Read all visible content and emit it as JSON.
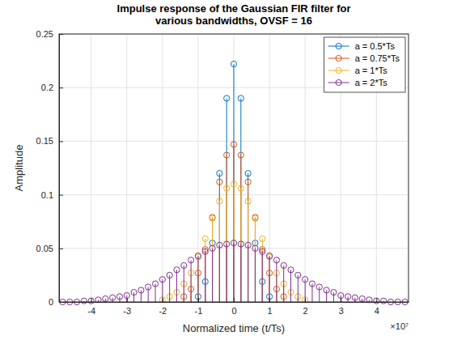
{
  "chart_data": {
    "type": "stem",
    "title": [
      "Impulse response of the Gaussian FIR filter for",
      "various bandwidths, OVSF = 16"
    ],
    "x_label": "Normalized time (t/Ts)",
    "y_label": "Amplitude",
    "annotations": [
      "×10⁷"
    ],
    "xlim": [
      -4.9,
      4.9
    ],
    "xticks": [
      -4,
      -3,
      -2,
      -1,
      0,
      1,
      2,
      3,
      4
    ],
    "ylim": [
      0,
      0.25
    ],
    "yticks": [
      0,
      0.05,
      0.1,
      0.15,
      0.2,
      0.25
    ],
    "grid": true,
    "legend": "northeast",
    "series": [
      {
        "name": "a = 0.5*Ts",
        "color": "#0072bd",
        "marker": "circle",
        "x": [
          -1.0,
          -0.8,
          -0.6,
          -0.4,
          -0.2,
          0,
          0.2,
          0.4,
          0.6,
          0.8,
          1.0
        ],
        "values": [
          0.005,
          0.019,
          0.055,
          0.12,
          0.19,
          0.222,
          0.19,
          0.12,
          0.055,
          0.019,
          0.005
        ]
      },
      {
        "name": "a = 0.75*Ts",
        "color": "#d95319",
        "marker": "circle",
        "x": [
          -1.4,
          -1.2,
          -1.0,
          -0.8,
          -0.6,
          -0.4,
          -0.2,
          0,
          0.2,
          0.4,
          0.6,
          0.8,
          1.0,
          1.2,
          1.4
        ],
        "values": [
          0.005,
          0.012,
          0.027,
          0.049,
          0.079,
          0.112,
          0.137,
          0.147,
          0.137,
          0.112,
          0.079,
          0.049,
          0.027,
          0.012,
          0.005
        ]
      },
      {
        "name": "a = 1*Ts",
        "color": "#edb120",
        "marker": "circle",
        "x": [
          -2.0,
          -1.8,
          -1.6,
          -1.4,
          -1.2,
          -1.0,
          -0.8,
          -0.6,
          -0.4,
          -0.2,
          0,
          0.2,
          0.4,
          0.6,
          0.8,
          1.0,
          1.2,
          1.4,
          1.6,
          1.8,
          2.0
        ],
        "values": [
          0.002,
          0.005,
          0.009,
          0.017,
          0.027,
          0.042,
          0.059,
          0.078,
          0.094,
          0.106,
          0.11,
          0.106,
          0.094,
          0.078,
          0.059,
          0.042,
          0.027,
          0.017,
          0.009,
          0.005,
          0.002
        ]
      },
      {
        "name": "a = 2*Ts",
        "color": "#7e2f8e",
        "marker": "circle",
        "x": [
          -4.8,
          -4.6,
          -4.4,
          -4.2,
          -4.0,
          -3.8,
          -3.6,
          -3.4,
          -3.2,
          -3.0,
          -2.8,
          -2.6,
          -2.4,
          -2.2,
          -2.0,
          -1.8,
          -1.6,
          -1.4,
          -1.2,
          -1.0,
          -0.8,
          -0.6,
          -0.4,
          -0.2,
          0,
          0.2,
          0.4,
          0.6,
          0.8,
          1.0,
          1.2,
          1.4,
          1.6,
          1.8,
          2.0,
          2.2,
          2.4,
          2.6,
          2.8,
          3.0,
          3.2,
          3.4,
          3.6,
          3.8,
          4.0,
          4.2,
          4.4,
          4.6,
          4.8
        ],
        "values": [
          0,
          0,
          0,
          0.001,
          0.001,
          0.002,
          0.003,
          0.004,
          0.005,
          0.006,
          0.009,
          0.011,
          0.014,
          0.017,
          0.021,
          0.025,
          0.03,
          0.034,
          0.039,
          0.043,
          0.047,
          0.05,
          0.053,
          0.054,
          0.055,
          0.054,
          0.053,
          0.05,
          0.047,
          0.043,
          0.039,
          0.034,
          0.03,
          0.025,
          0.021,
          0.017,
          0.014,
          0.011,
          0.009,
          0.006,
          0.005,
          0.004,
          0.003,
          0.002,
          0.001,
          0.001,
          0,
          0,
          0
        ]
      }
    ]
  }
}
